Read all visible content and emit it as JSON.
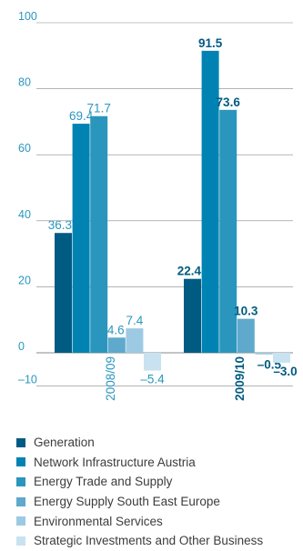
{
  "chart_data": {
    "type": "bar",
    "categories": [
      "2008/09",
      "2009/10"
    ],
    "series": [
      {
        "name": "Generation",
        "values": [
          36.3,
          22.4
        ],
        "color": "#005b82"
      },
      {
        "name": "Network Infrastructure Austria",
        "values": [
          69.4,
          91.5
        ],
        "color": "#0083b3"
      },
      {
        "name": "Energy Trade and Supply",
        "values": [
          71.7,
          73.6
        ],
        "color": "#2b96bd"
      },
      {
        "name": "Energy Supply South East Europe",
        "values": [
          4.6,
          10.3
        ],
        "color": "#5ea9cc"
      },
      {
        "name": "Environmental Services",
        "values": [
          7.4,
          -0.5
        ],
        "color": "#9ccae3"
      },
      {
        "name": "Strategic Investments and Other Business",
        "values": [
          -5.4,
          -3.0
        ],
        "color": "#c9e2f1"
      }
    ],
    "data_labels": [
      [
        "36.3",
        "69.4",
        "71.7",
        "4.6",
        "7.4",
        "–5.4"
      ],
      [
        "22.4",
        "91.5",
        "73.6",
        "10.3",
        "–0.5",
        "–3.0"
      ]
    ],
    "y_ticks": [
      {
        "value": 100,
        "label": "100"
      },
      {
        "value": 80,
        "label": "80"
      },
      {
        "value": 60,
        "label": "60"
      },
      {
        "value": 40,
        "label": "40"
      },
      {
        "value": 20,
        "label": "20"
      },
      {
        "value": 0,
        "label": "0"
      },
      {
        "value": -10,
        "label": "–10"
      }
    ],
    "ylim": [
      -10,
      100
    ],
    "grid": true,
    "legend_position": "bottom",
    "colors": {
      "axis_text": "#2b96bd",
      "label_light": "#2b96bd",
      "label_bold": "#005b82",
      "grid": "#888888"
    }
  }
}
